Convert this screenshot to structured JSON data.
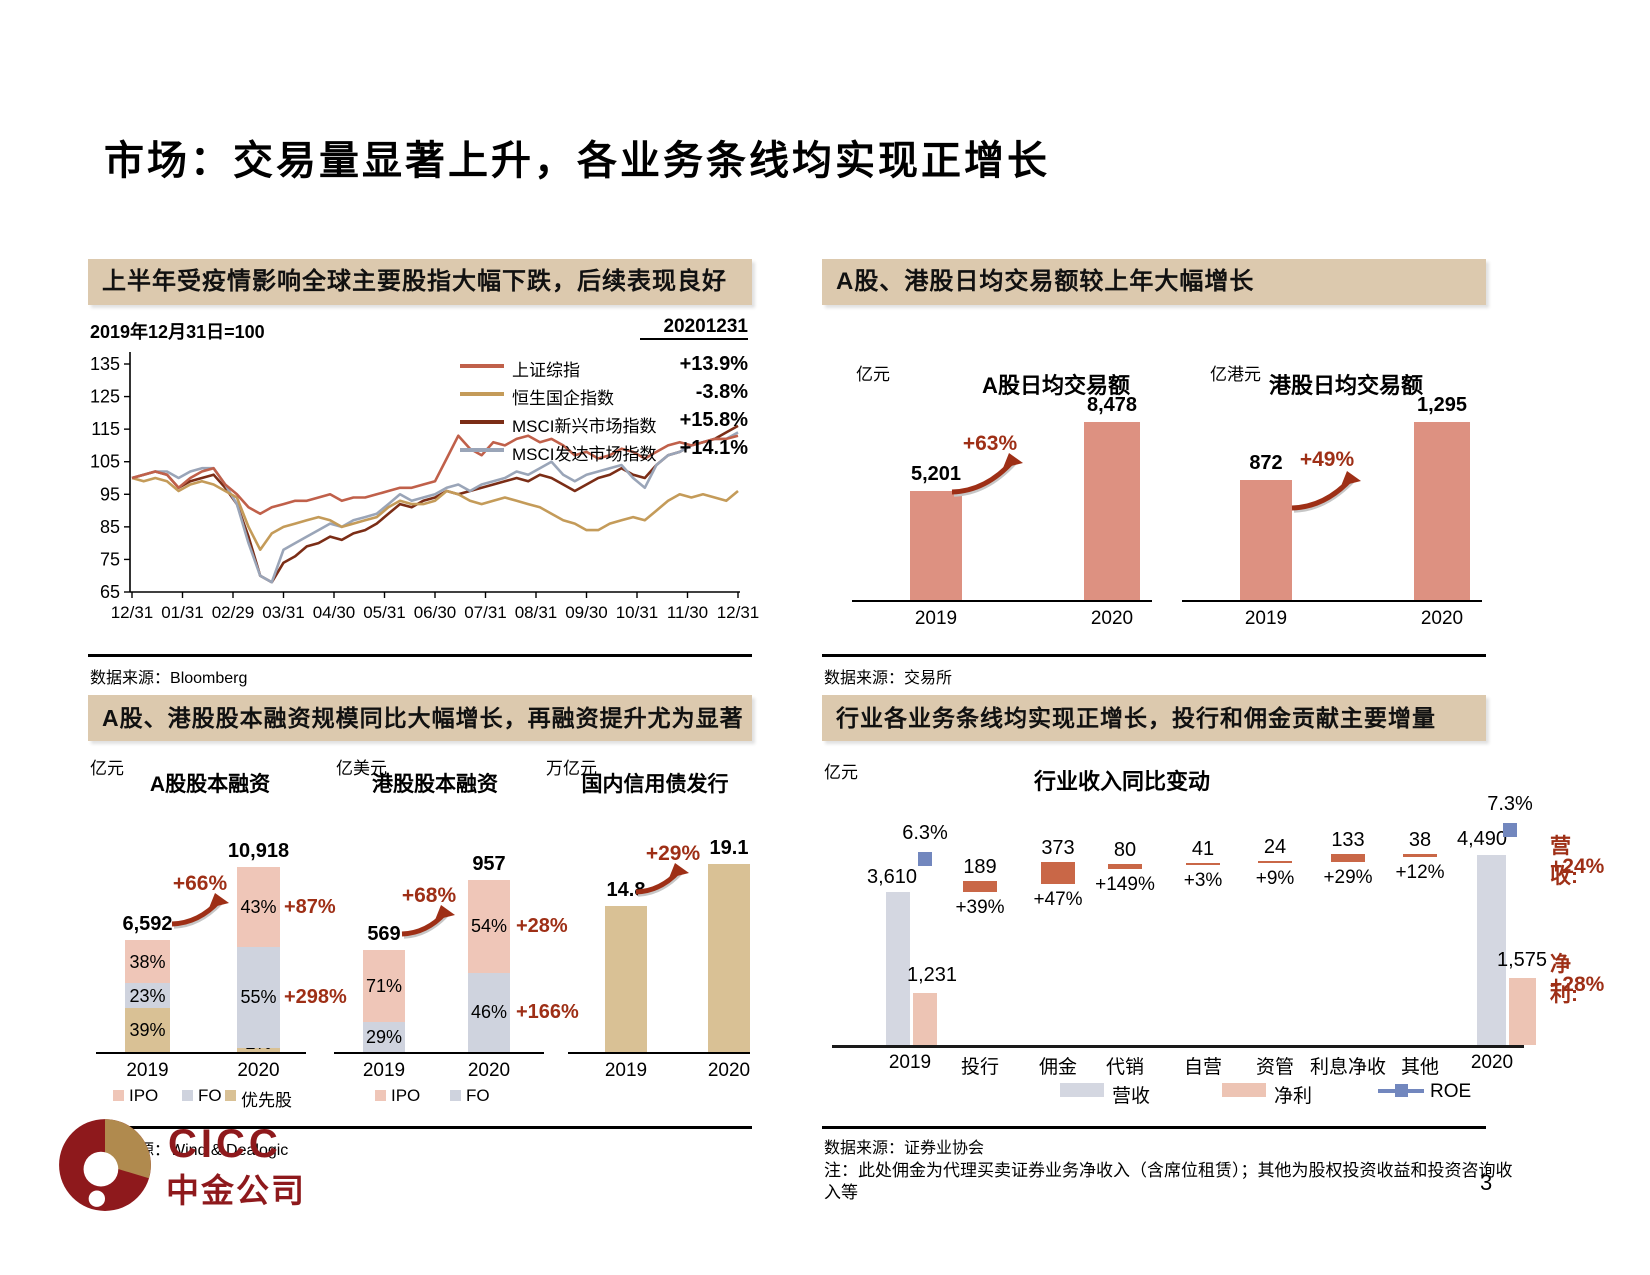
{
  "page": {
    "title": "市场：交易量显著上升，各业务条线均实现正增长",
    "page_number": "3"
  },
  "footer": {
    "logo_en": "CICC",
    "logo_cn": "中金公司"
  },
  "colors": {
    "band": "#DCC9AE",
    "dark_red": "#9E2F16",
    "salmon": "#DD9181",
    "ipo_pink": "#EFC6B8",
    "fo_gray": "#CFD3DE",
    "pref_tan": "#D9C195",
    "rev_gray": "#D4D7E1",
    "profit_pink": "#EDC4B4",
    "roe_blue": "#7287BE",
    "logo_red": "#8E191C"
  },
  "panels": {
    "p1": {
      "header": "上半年受疫情影响全球主要股指大幅下跌，后续表现良好",
      "subtitle": "2019年12月31日=100",
      "date_label": "20201231",
      "source_prefix": "数据来源：",
      "source": "Bloomberg"
    },
    "p2": {
      "header": "A股、港股日均交易额较上年大幅增长",
      "source_prefix": "数据来源：",
      "source": "交易所"
    },
    "p3": {
      "header": "A股、港股股本融资规模同比大幅增长，再融资提升尤为显著",
      "source_prefix": "数据来源：",
      "source": "Wind & Dealogic"
    },
    "p4": {
      "header": "行业各业务条线均实现正增长，投行和佣金贡献主要增量",
      "source_prefix": "数据来源：",
      "source": "证券业协会",
      "note_line1": "注：此处佣金为代理买卖证券业务净收入（含席位租赁）；其他为股权投资收益和投资咨询收",
      "note_line2": "入等"
    }
  },
  "chart_data": [
    {
      "id": "global-indices",
      "type": "line",
      "title": "上半年受疫情影响全球主要股指大幅下跌，后续表现良好",
      "base_note": "2019年12月31日=100",
      "as_of": "20201231",
      "ylim": [
        65,
        135
      ],
      "y_ticks": [
        135,
        125,
        115,
        105,
        95,
        85,
        75,
        65
      ],
      "x_ticks": [
        "12/31",
        "01/31",
        "02/29",
        "03/31",
        "04/30",
        "05/31",
        "06/30",
        "07/31",
        "08/31",
        "09/30",
        "10/31",
        "11/30",
        "12/31"
      ],
      "grid": false,
      "legend_position": "top-right",
      "series": [
        {
          "name": "上证综指",
          "change_label": "+13.9%",
          "color": "#C0604A",
          "values": [
            100,
            101,
            102,
            101,
            97,
            100,
            102,
            103,
            98,
            95,
            91,
            89,
            91,
            92,
            93,
            93,
            94,
            95,
            93,
            94,
            94,
            95,
            96,
            97,
            97,
            98,
            99,
            106,
            113,
            109,
            107,
            111,
            110,
            112,
            113,
            111,
            112,
            110,
            107,
            108,
            106,
            107,
            109,
            108,
            106,
            108,
            110,
            111,
            110,
            111,
            112,
            112,
            113
          ]
        },
        {
          "name": "恒生国企指数",
          "change_label": "-3.8%",
          "color": "#C49B59",
          "values": [
            100,
            99,
            100,
            99,
            96,
            98,
            99,
            98,
            96,
            94,
            85,
            78,
            83,
            85,
            86,
            87,
            88,
            87,
            85,
            86,
            87,
            88,
            91,
            93,
            92,
            92,
            93,
            96,
            95,
            93,
            92,
            93,
            94,
            93,
            92,
            91,
            89,
            87,
            86,
            84,
            84,
            86,
            87,
            88,
            87,
            90,
            93,
            95,
            94,
            95,
            94,
            93,
            96
          ]
        },
        {
          "name": "MSCI新兴市场指数",
          "change_label": "+15.8%",
          "color": "#7B2D16",
          "values": [
            100,
            101,
            102,
            101,
            97,
            99,
            100,
            101,
            97,
            92,
            82,
            70,
            68,
            74,
            76,
            79,
            80,
            82,
            81,
            83,
            84,
            86,
            89,
            92,
            91,
            93,
            94,
            96,
            95,
            96,
            97,
            98,
            99,
            100,
            99,
            101,
            100,
            98,
            96,
            98,
            100,
            101,
            103,
            101,
            100,
            104,
            107,
            108,
            110,
            111,
            112,
            114,
            116
          ]
        },
        {
          "name": "MSCI发达市场指数",
          "change_label": "+14.1%",
          "color": "#9AA5B8",
          "values": [
            100,
            101,
            102,
            102,
            100,
            102,
            103,
            103,
            98,
            92,
            80,
            70,
            68,
            78,
            80,
            82,
            84,
            86,
            85,
            87,
            88,
            89,
            92,
            95,
            93,
            94,
            95,
            97,
            98,
            96,
            98,
            99,
            100,
            102,
            101,
            103,
            105,
            101,
            99,
            101,
            102,
            103,
            104,
            100,
            97,
            104,
            107,
            108,
            110,
            111,
            112,
            112,
            114
          ]
        }
      ]
    },
    {
      "id": "a-share-adt",
      "type": "bar",
      "title": "A股日均交易额",
      "unit": "亿元",
      "categories": [
        "2019",
        "2020"
      ],
      "values": [
        5201,
        8478
      ],
      "value_labels": [
        "5,201",
        "8,478"
      ],
      "growth_label": "+63%",
      "bar_color": "#DD9181"
    },
    {
      "id": "hk-adt",
      "type": "bar",
      "title": "港股日均交易额",
      "unit": "亿港元",
      "categories": [
        "2019",
        "2020"
      ],
      "values": [
        872,
        1295
      ],
      "value_labels": [
        "872",
        "1,295"
      ],
      "growth_label": "+49%",
      "bar_color": "#DD9181"
    },
    {
      "id": "a-share-equity-financing",
      "type": "stacked-bar",
      "title": "A股股本融资",
      "unit": "亿元",
      "categories": [
        "2019",
        "2020"
      ],
      "totals": [
        6592,
        10918
      ],
      "total_labels": [
        "6,592",
        "10,918"
      ],
      "growth_label": "+66%",
      "stacks": [
        [
          {
            "name": "优先股",
            "pct": 39,
            "label": "39%"
          },
          {
            "name": "FO",
            "pct": 23,
            "label": "23%"
          },
          {
            "name": "IPO",
            "pct": 38,
            "label": "38%"
          }
        ],
        [
          {
            "name": "优先股",
            "pct": 2,
            "label": "2%"
          },
          {
            "name": "FO",
            "pct": 55,
            "label": "55%",
            "side_label": "+298%"
          },
          {
            "name": "IPO",
            "pct": 43,
            "label": "43%",
            "side_label": "+87%"
          }
        ]
      ],
      "legend": [
        "IPO",
        "FO",
        "优先股"
      ]
    },
    {
      "id": "hk-equity-financing",
      "type": "stacked-bar",
      "title": "港股股本融资",
      "unit": "亿美元",
      "categories": [
        "2019",
        "2020"
      ],
      "totals": [
        569,
        957
      ],
      "total_labels": [
        "569",
        "957"
      ],
      "growth_label": "+68%",
      "stacks": [
        [
          {
            "name": "FO",
            "pct": 29,
            "label": "29%"
          },
          {
            "name": "IPO",
            "pct": 71,
            "label": "71%"
          }
        ],
        [
          {
            "name": "FO",
            "pct": 46,
            "label": "46%",
            "side_label": "+166%"
          },
          {
            "name": "IPO",
            "pct": 54,
            "label": "54%",
            "side_label": "+28%"
          }
        ]
      ],
      "legend": [
        "IPO",
        "FO"
      ]
    },
    {
      "id": "domestic-credit-bond",
      "type": "bar",
      "title": "国内信用债发行",
      "unit": "万亿元",
      "categories": [
        "2019",
        "2020"
      ],
      "values": [
        14.8,
        19.1
      ],
      "value_labels": [
        "14.8",
        "19.1"
      ],
      "growth_label": "+29%",
      "bar_color": "#D9C195"
    },
    {
      "id": "industry-revenue-bridge",
      "type": "waterfall",
      "title": "行业收入同比变动",
      "unit": "亿元",
      "categories": [
        "2019",
        "投行",
        "佣金",
        "代销",
        "自营",
        "资管",
        "利息净收",
        "其他",
        "2020"
      ],
      "start": {
        "revenue": 3610,
        "revenue_label": "3,610",
        "net_profit": 1231,
        "net_profit_label": "1,231",
        "roe_label": "6.3%"
      },
      "end": {
        "revenue": 4490,
        "revenue_label": "4,490",
        "net_profit": 1575,
        "net_profit_label": "1,575",
        "roe_label": "7.3%"
      },
      "deltas": [
        {
          "name": "投行",
          "value": 189,
          "label": "189",
          "pct_label": "+39%"
        },
        {
          "name": "佣金",
          "value": 373,
          "label": "373",
          "pct_label": "+47%"
        },
        {
          "name": "代销",
          "value": 80,
          "label": "80",
          "pct_label": "+149%"
        },
        {
          "name": "自营",
          "value": 41,
          "label": "41",
          "pct_label": "+3%"
        },
        {
          "name": "资管",
          "value": 24,
          "label": "24",
          "pct_label": "+9%"
        },
        {
          "name": "利息净收",
          "value": 133,
          "label": "133",
          "pct_label": "+29%"
        },
        {
          "name": "其他",
          "value": 38,
          "label": "38",
          "pct_label": "+12%"
        }
      ],
      "legend": [
        {
          "name": "营收",
          "color": "#D4D7E1"
        },
        {
          "name": "净利",
          "color": "#EDC4B4"
        },
        {
          "name": "ROE",
          "color": "#7287BE"
        }
      ],
      "right_labels": {
        "revenue_title": "营收:",
        "revenue_pct": "+24%",
        "net_profit_title": "净利:",
        "net_profit_pct": "+28%"
      }
    }
  ]
}
